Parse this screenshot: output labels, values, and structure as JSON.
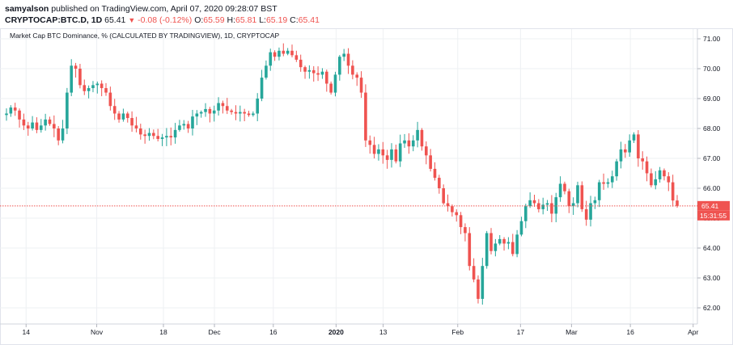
{
  "header": {
    "author": "samyalson",
    "published_text": "published on TradingView.com, April 07, 2020 09:28:07 BST",
    "symbol": "CRYPTOCAP:BTC.D, 1D",
    "last": "65.41",
    "change": "-0.08 (-0.12%)",
    "o_label": "O:",
    "o_value": "65.59",
    "h_label": "H:",
    "h_value": "65.81",
    "l_label": "L:",
    "l_value": "65.19",
    "c_label": "C:",
    "c_value": "65.41"
  },
  "colors": {
    "up": "#26a69a",
    "down": "#ef5350",
    "grid": "#eef0f3",
    "axis_text": "#131722"
  },
  "chart_data": {
    "type": "candlestick",
    "title": "Market Cap BTC Dominance, % (CALCULATED BY TRADINGVIEW), 1D, CRYPTOCAP",
    "y_ticks": [
      "71.00",
      "70.00",
      "69.00",
      "68.00",
      "67.00",
      "66.00",
      "65.00",
      "64.00",
      "63.00",
      "62.00"
    ],
    "ylim": [
      61.6,
      71.3
    ],
    "x_ticks": [
      {
        "label": "14",
        "date": "2019-10-14"
      },
      {
        "label": "Nov",
        "date": "2019-11-01"
      },
      {
        "label": "18",
        "date": "2019-11-18"
      },
      {
        "label": "Dec",
        "date": "2019-12-01"
      },
      {
        "label": "16",
        "date": "2019-12-16"
      },
      {
        "label": "2020",
        "date": "2020-01-01"
      },
      {
        "label": "13",
        "date": "2020-01-13"
      },
      {
        "label": "Feb",
        "date": "2020-02-01"
      },
      {
        "label": "17",
        "date": "2020-02-17"
      },
      {
        "label": "Mar",
        "date": "2020-03-01"
      },
      {
        "label": "16",
        "date": "2020-03-16"
      },
      {
        "label": "Apr",
        "date": "2020-04-01"
      }
    ],
    "price_line": {
      "value": 65.41,
      "label": "65.41"
    },
    "countdown_label": "15:31:55",
    "start_date": "2019-10-09",
    "closes": [
      68.5,
      68.7,
      68.6,
      68.3,
      68.1,
      68.0,
      68.2,
      67.95,
      68.1,
      68.3,
      68.15,
      68.0,
      67.6,
      68.0,
      69.2,
      70.1,
      70.0,
      69.45,
      69.25,
      69.35,
      69.45,
      69.5,
      69.35,
      69.2,
      68.75,
      68.5,
      68.3,
      68.5,
      68.35,
      68.1,
      68.0,
      67.8,
      67.75,
      67.85,
      67.75,
      67.65,
      67.7,
      67.75,
      67.7,
      67.95,
      68.1,
      68.15,
      68.0,
      68.4,
      68.5,
      68.55,
      68.65,
      68.5,
      68.6,
      68.85,
      68.75,
      68.6,
      68.55,
      68.5,
      68.55,
      68.5,
      68.45,
      68.5,
      69.0,
      69.7,
      70.1,
      70.55,
      70.4,
      70.6,
      70.5,
      70.6,
      70.45,
      70.3,
      70.05,
      69.9,
      69.95,
      69.85,
      69.8,
      69.9,
      69.5,
      69.2,
      69.8,
      70.4,
      70.5,
      70.1,
      69.8,
      69.7,
      69.2,
      67.6,
      67.45,
      67.15,
      67.3,
      67.1,
      66.95,
      67.3,
      66.9,
      67.5,
      67.6,
      67.4,
      67.6,
      67.95,
      67.4,
      67.1,
      66.65,
      66.35,
      66.0,
      65.5,
      65.4,
      65.2,
      65.1,
      64.7,
      64.5,
      63.4,
      62.95,
      62.3,
      63.4,
      64.5,
      63.9,
      64.15,
      64.3,
      64.15,
      64.2,
      63.8,
      64.45,
      64.9,
      65.4,
      65.6,
      65.5,
      65.3,
      65.45,
      65.5,
      65.15,
      65.7,
      66.15,
      65.9,
      65.4,
      65.5,
      66.1,
      65.3,
      64.95,
      65.5,
      65.6,
      66.2,
      66.15,
      66.2,
      66.4,
      66.9,
      67.3,
      67.2,
      67.6,
      67.8,
      67.0,
      66.9,
      66.5,
      66.1,
      66.3,
      66.6,
      66.4,
      66.2,
      65.59,
      65.41
    ]
  }
}
